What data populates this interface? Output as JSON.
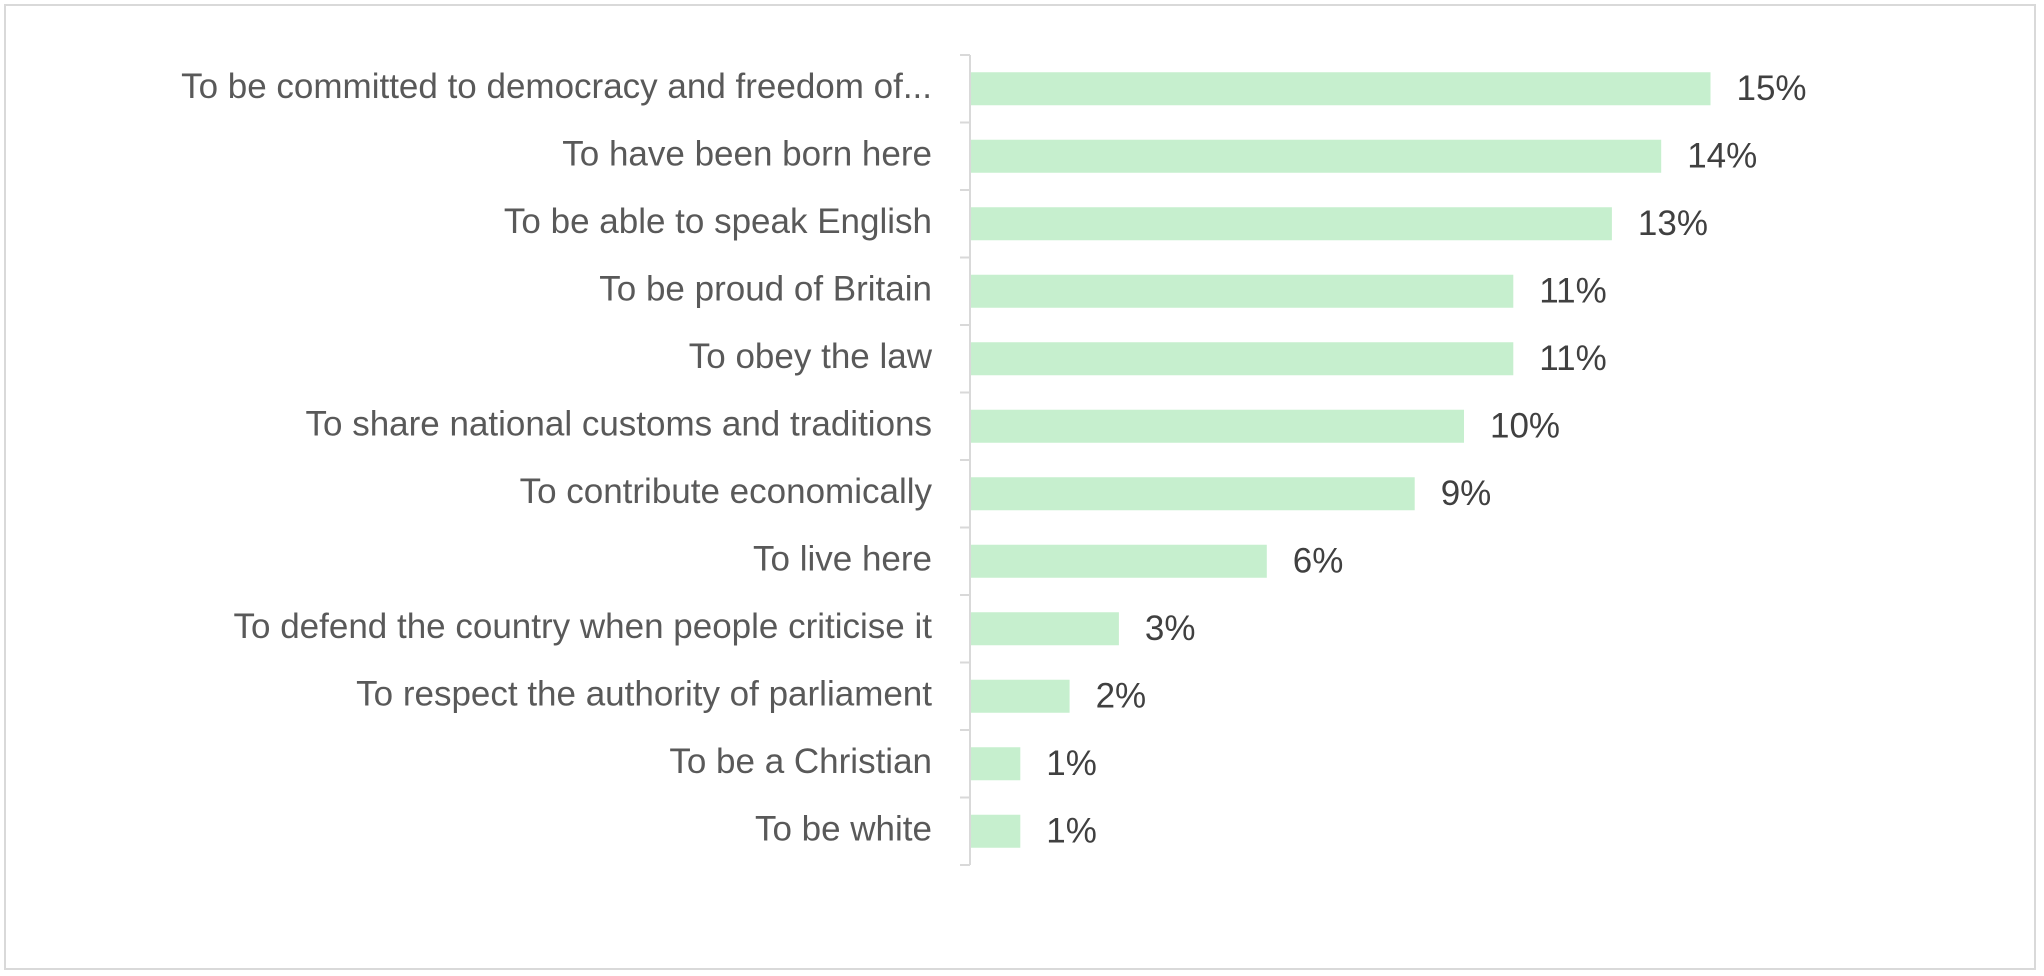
{
  "chart_data": {
    "type": "bar",
    "orientation": "horizontal",
    "categories": [
      "To be committed to democracy and freedom of...",
      "To have been born here",
      "To be able to speak English",
      "To be proud of Britain",
      "To obey the law",
      "To share national customs and traditions",
      "To contribute economically",
      "To live here",
      "To defend the country when people criticise it",
      "To respect the authority of parliament",
      "To be a Christian",
      "To be white"
    ],
    "values": [
      15,
      14,
      13,
      11,
      11,
      10,
      9,
      6,
      3,
      2,
      1,
      1
    ],
    "value_labels": [
      "15%",
      "14%",
      "13%",
      "11%",
      "11%",
      "10%",
      "9%",
      "6%",
      "3%",
      "2%",
      "1%",
      "1%"
    ],
    "title": "",
    "xlabel": "",
    "ylabel": "",
    "xlim": [
      0,
      20
    ],
    "grid": false,
    "legend": "none",
    "bar_color": "#c6efce",
    "axis_color": "#d9d9d9"
  }
}
